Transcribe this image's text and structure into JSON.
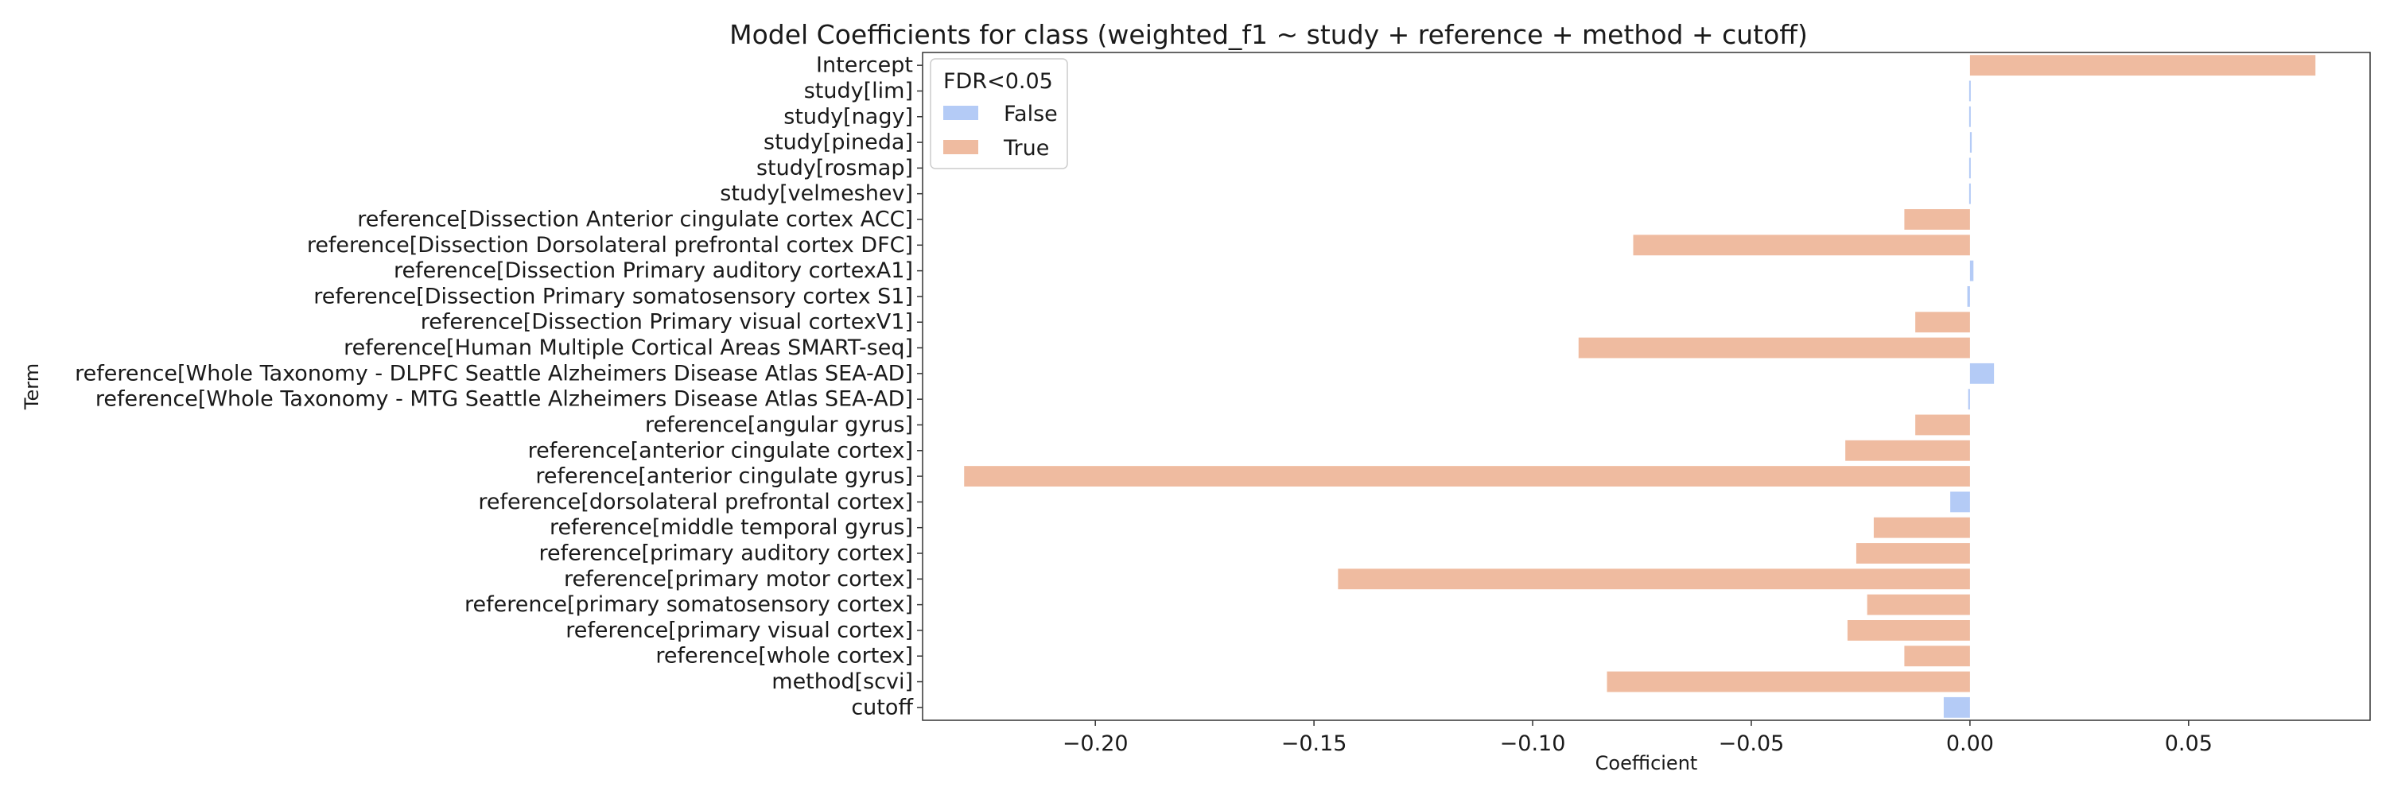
{
  "chart_data": {
    "type": "bar",
    "orientation": "horizontal",
    "title": "Model Coefficients for class (weighted_f1 ~ study + reference + method + cutoff)",
    "xlabel": "Coefficient",
    "ylabel": "Term",
    "xlim": [
      -0.2395,
      0.0915
    ],
    "xticks": [
      -0.2,
      -0.15,
      -0.1,
      -0.05,
      0.0,
      0.05
    ],
    "xtick_labels": [
      "−0.20",
      "−0.15",
      "−0.10",
      "−0.05",
      "0.00",
      "0.05"
    ],
    "grid": false,
    "legend": {
      "title": "FDR<0.05",
      "placement": "top-left",
      "entries": [
        {
          "label": "False",
          "color": "#b4cbf6"
        },
        {
          "label": "True",
          "color": "#efbba0"
        }
      ]
    },
    "categories": [
      "Intercept",
      "study[lim]",
      "study[nagy]",
      "study[pineda]",
      "study[rosmap]",
      "study[velmeshev]",
      "reference[Dissection Anterior cingulate cortex ACC]",
      "reference[Dissection Dorsolateral prefrontal cortex DFC]",
      "reference[Dissection Primary auditory cortexA1]",
      "reference[Dissection Primary somatosensory cortex S1]",
      "reference[Dissection Primary visual cortexV1]",
      "reference[Human Multiple Cortical Areas SMART-seq]",
      "reference[Whole Taxonomy - DLPFC Seattle Alzheimers Disease Atlas SEA-AD]",
      "reference[Whole Taxonomy - MTG Seattle Alzheimers Disease Atlas SEA-AD]",
      "reference[angular gyrus]",
      "reference[anterior cingulate cortex]",
      "reference[anterior cingulate gyrus]",
      "reference[dorsolateral prefrontal cortex]",
      "reference[middle temporal gyrus]",
      "reference[primary auditory cortex]",
      "reference[primary motor cortex]",
      "reference[primary somatosensory cortex]",
      "reference[primary visual cortex]",
      "reference[whole cortex]",
      "method[scvi]",
      "cutoff"
    ],
    "values": [
      0.079,
      0.0003,
      0.0003,
      0.0004,
      0.0003,
      0.0003,
      -0.015,
      -0.077,
      0.0008,
      -0.0006,
      -0.0125,
      -0.0895,
      0.0055,
      -0.0004,
      -0.0125,
      -0.0285,
      -0.23,
      -0.0045,
      -0.022,
      -0.026,
      -0.1445,
      -0.0235,
      -0.028,
      -0.015,
      -0.083,
      -0.006
    ],
    "significant": [
      true,
      false,
      false,
      false,
      false,
      false,
      true,
      true,
      false,
      false,
      true,
      true,
      false,
      false,
      true,
      true,
      true,
      false,
      true,
      true,
      true,
      true,
      true,
      true,
      true,
      false
    ]
  }
}
